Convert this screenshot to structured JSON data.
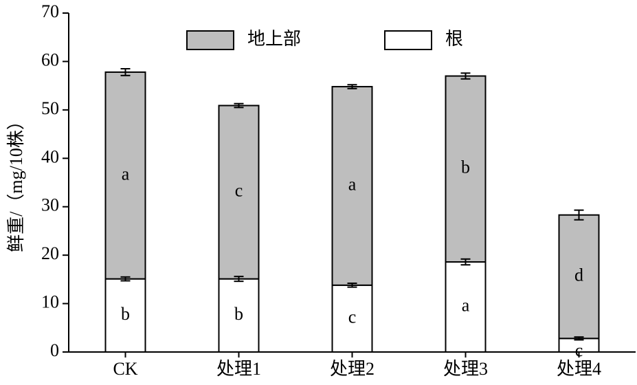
{
  "chart_data": {
    "type": "stacked-bar",
    "y_label": "鲜重/（mg/10株）",
    "categories": [
      "CK",
      "处理1",
      "处理2",
      "处理3",
      "处理4"
    ],
    "series": [
      {
        "name": "根",
        "color": "#ffffff",
        "values": [
          15.1,
          15.1,
          13.8,
          18.6,
          2.8
        ],
        "errors": [
          0.4,
          0.5,
          0.4,
          0.6,
          0.3
        ],
        "letters": [
          "b",
          "b",
          "c",
          "a",
          "c"
        ]
      },
      {
        "name": "地上部",
        "color": "#bebebe",
        "values": [
          42.7,
          35.8,
          41.0,
          38.4,
          25.5
        ],
        "errors": [
          0.7,
          0.4,
          0.4,
          0.6,
          1.0
        ],
        "letters": [
          "a",
          "c",
          "a",
          "b",
          "d"
        ]
      }
    ],
    "ylim": [
      0,
      70
    ],
    "yticks": [
      0,
      10,
      20,
      30,
      40,
      50,
      60,
      70
    ]
  }
}
